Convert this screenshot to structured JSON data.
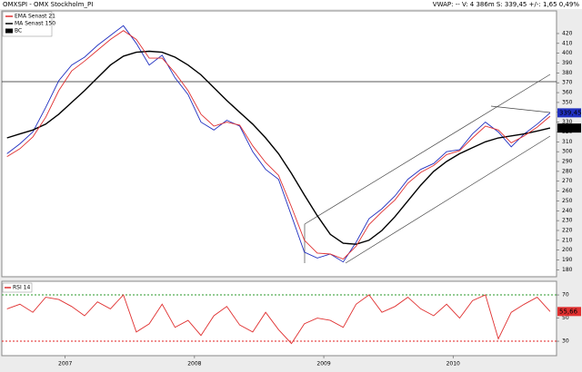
{
  "header": {
    "title": "OMXSPI - OMX Stockholm_PI",
    "quote": "VWAP: -- V: 4 386m S: 339,45 +/-: 1,65 0,49%"
  },
  "chart_data": [
    {
      "type": "line",
      "x": [
        2006.55,
        2006.65,
        2006.75,
        2006.85,
        2006.95,
        2007.05,
        2007.15,
        2007.25,
        2007.35,
        2007.45,
        2007.55,
        2007.65,
        2007.75,
        2007.85,
        2007.95,
        2008.05,
        2008.15,
        2008.25,
        2008.35,
        2008.45,
        2008.55,
        2008.65,
        2008.75,
        2008.85,
        2008.95,
        2009.05,
        2009.15,
        2009.25,
        2009.35,
        2009.45,
        2009.55,
        2009.65,
        2009.75,
        2009.85,
        2009.95,
        2010.05,
        2010.15,
        2010.25,
        2010.35,
        2010.45,
        2010.55,
        2010.65,
        2010.75
      ],
      "xlim": [
        2006.51,
        2010.8
      ],
      "ylim": [
        173,
        443
      ],
      "yticks": [
        180,
        190,
        200,
        210,
        220,
        230,
        240,
        250,
        260,
        270,
        280,
        290,
        300,
        310,
        320,
        330,
        340,
        350,
        360,
        370,
        380,
        390,
        400,
        410,
        420
      ],
      "series": [
        {
          "name": "EMA  Senast 21",
          "color": "#e03030",
          "values": [
            295,
            303,
            315,
            335,
            362,
            382,
            392,
            403,
            414,
            423,
            414,
            395,
            395,
            380,
            362,
            338,
            326,
            330,
            327,
            306,
            289,
            276,
            244,
            210,
            197,
            196,
            191,
            204,
            226,
            239,
            251,
            268,
            279,
            286,
            297,
            301,
            314,
            326,
            322,
            309,
            316,
            325,
            336
          ]
        },
        {
          "name": "MA  Senast 150",
          "color": "#000000",
          "last_label": "323,99",
          "values": [
            314,
            318,
            322,
            328,
            338,
            350,
            362,
            375,
            388,
            397,
            401,
            402,
            401,
            396,
            388,
            378,
            365,
            352,
            340,
            328,
            314,
            298,
            278,
            256,
            235,
            216,
            207,
            206,
            210,
            220,
            234,
            250,
            266,
            280,
            290,
            298,
            304,
            310,
            314,
            316,
            318,
            321,
            323.99
          ]
        },
        {
          "name": "BC",
          "color": "#2030c0",
          "last_label": "339,45",
          "values": [
            298,
            308,
            320,
            345,
            372,
            388,
            396,
            408,
            418,
            428,
            410,
            388,
            398,
            375,
            358,
            330,
            322,
            332,
            326,
            300,
            282,
            272,
            235,
            198,
            192,
            196,
            188,
            208,
            232,
            242,
            255,
            272,
            282,
            288,
            300,
            302,
            318,
            330,
            320,
            305,
            318,
            328,
            339.45
          ]
        }
      ]
    },
    {
      "type": "line",
      "x": [
        2006.55,
        2006.65,
        2006.75,
        2006.85,
        2006.95,
        2007.05,
        2007.15,
        2007.25,
        2007.35,
        2007.45,
        2007.55,
        2007.65,
        2007.75,
        2007.85,
        2007.95,
        2008.05,
        2008.15,
        2008.25,
        2008.35,
        2008.45,
        2008.55,
        2008.65,
        2008.75,
        2008.85,
        2008.95,
        2009.05,
        2009.15,
        2009.25,
        2009.35,
        2009.45,
        2009.55,
        2009.65,
        2009.75,
        2009.85,
        2009.95,
        2010.05,
        2010.15,
        2010.25,
        2010.35,
        2010.45,
        2010.55,
        2010.65,
        2010.75
      ],
      "xlim": [
        2006.51,
        2010.8
      ],
      "xticks": [
        2007,
        2008,
        2009,
        2010
      ],
      "ylim": [
        17.5,
        81.8
      ],
      "yticks": [
        30,
        50,
        70
      ],
      "levels": [
        70,
        30
      ],
      "level_colors": [
        "#2a9a2a",
        "#e02020"
      ],
      "series": [
        {
          "name": "RSI 14",
          "color": "#e03030",
          "last_label": "55,66",
          "values": [
            58,
            62,
            55,
            68,
            66,
            60,
            52,
            64,
            58,
            70,
            38,
            45,
            62,
            42,
            48,
            35,
            52,
            60,
            44,
            38,
            55,
            40,
            28,
            45,
            50,
            48,
            42,
            62,
            70,
            55,
            60,
            68,
            58,
            52,
            62,
            50,
            65,
            70,
            32,
            55,
            62,
            68,
            55.66
          ]
        }
      ]
    }
  ]
}
